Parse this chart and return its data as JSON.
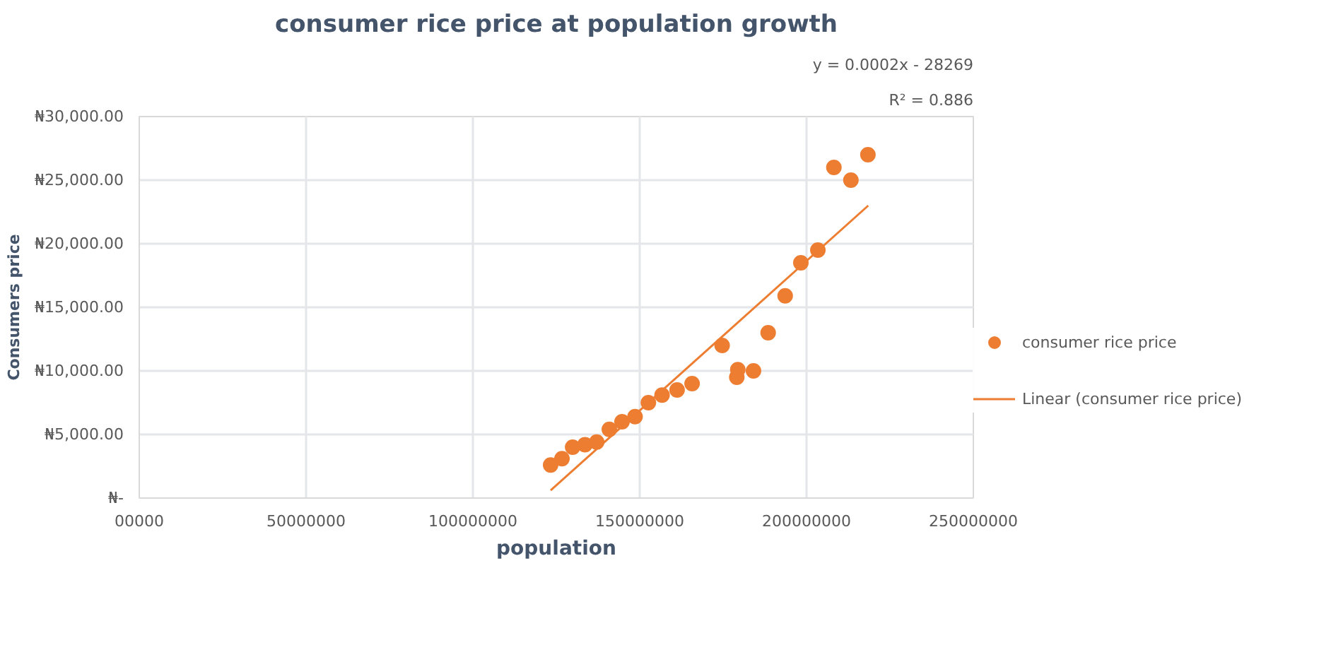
{
  "chart_data": {
    "type": "scatter",
    "title": "consumer rice price at population growth",
    "xlabel": "population",
    "ylabel": "Consumers price",
    "annotations": [
      "y = 0.0002x - 28269",
      "R² = 0.886"
    ],
    "series": [
      {
        "name": "consumer rice price",
        "marker": "circle",
        "color": "#ed7d31",
        "x": [
          123300000,
          126700000,
          129900000,
          133600000,
          137100000,
          140900000,
          144700000,
          148600000,
          152600000,
          156700000,
          161200000,
          165700000,
          174700000,
          179100000,
          179400000,
          184100000,
          188500000,
          193600000,
          198300000,
          203400000,
          208200000,
          213300000,
          218400000
        ],
        "values": [
          2600,
          3100,
          4000,
          4200,
          4400,
          5400,
          6000,
          6400,
          7500,
          8100,
          8500,
          9000,
          12000,
          9500,
          10100,
          10000,
          13000,
          15900,
          18500,
          19500,
          26000,
          25000,
          27000
        ]
      },
      {
        "name": "Linear (consumer rice price)",
        "type": "line",
        "marker": "none",
        "color": "#ed7d31",
        "x": [
          123300000,
          218500000
        ],
        "values": [
          600,
          23000
        ]
      }
    ],
    "xlim": [
      0,
      250000000
    ],
    "ylim": [
      0,
      30000
    ],
    "xticks": [
      {
        "value": 0,
        "label": "00000"
      },
      50000000,
      100000000,
      150000000,
      200000000,
      250000000
    ],
    "yticks": [
      {
        "value": 0,
        "label": "₦-"
      },
      {
        "value": 5000,
        "label": "₦5,000.00"
      },
      {
        "value": 10000,
        "label": "₦10,000.00"
      },
      {
        "value": 15000,
        "label": "₦15,000.00"
      },
      {
        "value": 20000,
        "label": "₦20,000.00"
      },
      {
        "value": 25000,
        "label": "₦25,000.00"
      },
      {
        "value": 30000,
        "label": "₦30,000.00"
      }
    ],
    "grid": true,
    "legend": "right",
    "line_style": "solid"
  }
}
